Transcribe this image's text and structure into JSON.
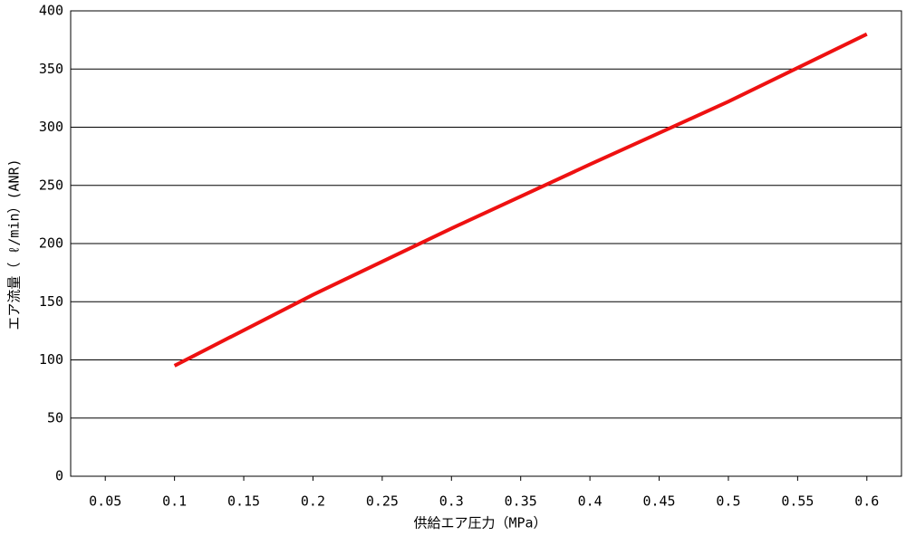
{
  "chart_data": {
    "type": "line",
    "x_label": "供給エア圧力（MPa）",
    "y_label": "エア流量（ ℓ/min）(ANR)",
    "x": [
      0.1,
      0.2,
      0.3,
      0.4,
      0.5,
      0.6
    ],
    "series": [
      {
        "name": "エア流量",
        "color": "#ee1111",
        "values": [
          95,
          156,
          213,
          268,
          322,
          380
        ]
      }
    ],
    "xlim": [
      0.025,
      0.625
    ],
    "xticks": [
      0.05,
      0.1,
      0.15,
      0.2,
      0.25,
      0.3,
      0.35,
      0.4,
      0.45,
      0.5,
      0.55,
      0.6
    ],
    "ylim": [
      0,
      400
    ],
    "yticks": [
      0,
      50,
      100,
      150,
      200,
      250,
      300,
      350,
      400
    ],
    "grid": true
  }
}
